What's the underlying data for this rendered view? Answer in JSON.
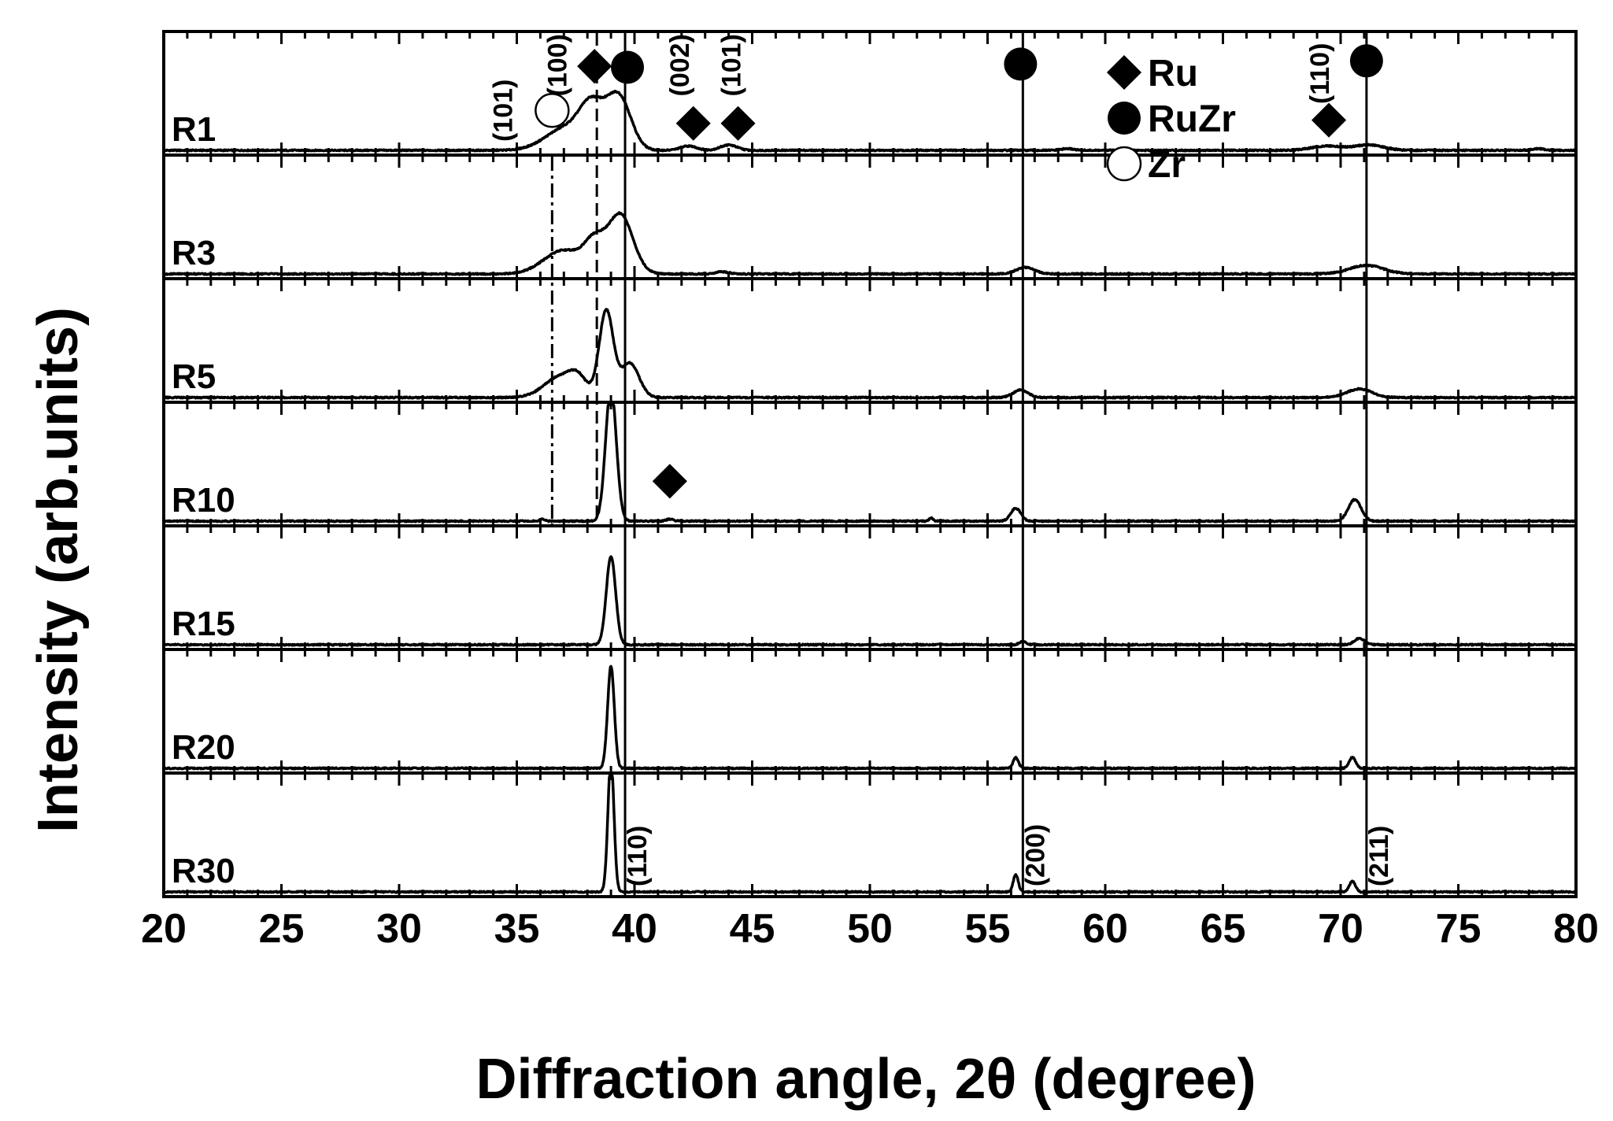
{
  "chart_data": {
    "type": "line",
    "xlabel": "Diffraction angle, 2θ (degree)",
    "ylabel": "Intensity (arb.units)",
    "xlim": [
      20,
      80
    ],
    "xticks": [
      20,
      25,
      30,
      35,
      40,
      45,
      50,
      55,
      60,
      65,
      70,
      75,
      80
    ],
    "grid": false,
    "legend_position": "top-right",
    "legend": [
      {
        "symbol": "diamond",
        "label": "Ru"
      },
      {
        "symbol": "filled-circle",
        "label": "RuZr"
      },
      {
        "symbol": "open-circle",
        "label": "Zr"
      }
    ],
    "reference_lines": [
      {
        "x": 36.5,
        "style": "dash-dot",
        "y_from_panel": 1,
        "y_to_panel": 3
      },
      {
        "x": 38.4,
        "style": "dashed",
        "y_from_panel": 0,
        "y_to_panel": 3
      },
      {
        "x": 39.6,
        "style": "solid",
        "y_from_panel": 0,
        "y_to_panel": 6
      },
      {
        "x": 56.5,
        "style": "solid",
        "y_from_panel": 0,
        "y_to_panel": 6
      },
      {
        "x": 71.1,
        "style": "solid",
        "y_from_panel": 0,
        "y_to_panel": 6
      }
    ],
    "miller_labels": [
      {
        "text": "(101)",
        "x": 34.5,
        "panel": 0,
        "y": 0.08
      },
      {
        "text": "(100)",
        "x": 36.8,
        "panel": 0,
        "y": 0.5
      },
      {
        "text": "(002)",
        "x": 42.0,
        "panel": 0,
        "y": 0.5
      },
      {
        "text": "(101)",
        "x": 44.2,
        "panel": 0,
        "y": 0.5
      },
      {
        "text": "(110)",
        "x": 69.2,
        "panel": 0,
        "y": 0.43
      },
      {
        "text": "(110)",
        "x": 40.2,
        "panel": 6,
        "y": 0.05
      },
      {
        "text": "(200)",
        "x": 57.1,
        "panel": 6,
        "y": 0.05
      },
      {
        "text": "(211)",
        "x": 71.7,
        "panel": 6,
        "y": 0.05
      }
    ],
    "markers": [
      {
        "symbol": "diamond",
        "x": 38.3,
        "panel": 0,
        "y": 0.78
      },
      {
        "symbol": "filled-circle",
        "x": 39.7,
        "panel": 0,
        "y": 0.77
      },
      {
        "symbol": "open-circle",
        "x": 36.5,
        "panel": 0,
        "y": 0.37
      },
      {
        "symbol": "diamond",
        "x": 42.5,
        "panel": 0,
        "y": 0.25
      },
      {
        "symbol": "diamond",
        "x": 44.4,
        "panel": 0,
        "y": 0.25
      },
      {
        "symbol": "filled-circle",
        "x": 56.4,
        "panel": 0,
        "y": 0.8
      },
      {
        "symbol": "diamond",
        "x": 69.5,
        "panel": 0,
        "y": 0.28
      },
      {
        "symbol": "filled-circle",
        "x": 71.1,
        "panel": 0,
        "y": 0.83
      },
      {
        "symbol": "diamond",
        "x": 41.5,
        "panel": 3,
        "y": 0.37
      }
    ],
    "series": [
      {
        "name": "R1",
        "peaks": [
          {
            "x": 37.2,
            "h": 0.22,
            "w": 1.3
          },
          {
            "x": 38.1,
            "h": 0.26,
            "w": 0.65
          },
          {
            "x": 39.4,
            "h": 0.4,
            "w": 0.7
          },
          {
            "x": 38.8,
            "h": 0.18,
            "w": 0.8
          },
          {
            "x": 42.3,
            "h": 0.04,
            "w": 0.5
          },
          {
            "x": 44.0,
            "h": 0.05,
            "w": 0.5
          },
          {
            "x": 58.4,
            "h": 0.015,
            "w": 0.4
          },
          {
            "x": 69.4,
            "h": 0.04,
            "w": 0.9
          },
          {
            "x": 71.2,
            "h": 0.05,
            "w": 0.9
          },
          {
            "x": 78.4,
            "h": 0.015,
            "w": 0.4
          }
        ]
      },
      {
        "name": "R3",
        "peaks": [
          {
            "x": 37.0,
            "h": 0.22,
            "w": 1.2
          },
          {
            "x": 38.3,
            "h": 0.25,
            "w": 0.6
          },
          {
            "x": 39.4,
            "h": 0.55,
            "w": 0.75
          },
          {
            "x": 43.7,
            "h": 0.02,
            "w": 0.4
          },
          {
            "x": 56.6,
            "h": 0.06,
            "w": 0.55
          },
          {
            "x": 71.1,
            "h": 0.08,
            "w": 1.0
          }
        ]
      },
      {
        "name": "R5",
        "peaks": [
          {
            "x": 36.9,
            "h": 0.2,
            "w": 1.0
          },
          {
            "x": 37.6,
            "h": 0.12,
            "w": 0.5
          },
          {
            "x": 38.8,
            "h": 0.8,
            "w": 0.42
          },
          {
            "x": 39.8,
            "h": 0.32,
            "w": 0.55
          },
          {
            "x": 56.4,
            "h": 0.07,
            "w": 0.45
          },
          {
            "x": 70.8,
            "h": 0.08,
            "w": 0.75
          }
        ]
      },
      {
        "name": "R10",
        "peaks": [
          {
            "x": 39.0,
            "h": 1.25,
            "w": 0.32
          },
          {
            "x": 36.1,
            "h": 0.02,
            "w": 0.15
          },
          {
            "x": 41.5,
            "h": 0.02,
            "w": 0.2
          },
          {
            "x": 52.6,
            "h": 0.03,
            "w": 0.12
          },
          {
            "x": 56.2,
            "h": 0.12,
            "w": 0.3
          },
          {
            "x": 70.6,
            "h": 0.2,
            "w": 0.38
          }
        ]
      },
      {
        "name": "R15",
        "peaks": [
          {
            "x": 39.0,
            "h": 0.82,
            "w": 0.28
          },
          {
            "x": 56.5,
            "h": 0.03,
            "w": 0.2
          },
          {
            "x": 70.8,
            "h": 0.06,
            "w": 0.3
          }
        ]
      },
      {
        "name": "R20",
        "peaks": [
          {
            "x": 39.0,
            "h": 0.95,
            "w": 0.2
          },
          {
            "x": 56.2,
            "h": 0.1,
            "w": 0.16
          },
          {
            "x": 70.5,
            "h": 0.1,
            "w": 0.2
          }
        ]
      },
      {
        "name": "R30",
        "peaks": [
          {
            "x": 39.0,
            "h": 1.25,
            "w": 0.18
          },
          {
            "x": 56.2,
            "h": 0.16,
            "w": 0.15
          },
          {
            "x": 70.5,
            "h": 0.1,
            "w": 0.18
          }
        ]
      }
    ]
  }
}
